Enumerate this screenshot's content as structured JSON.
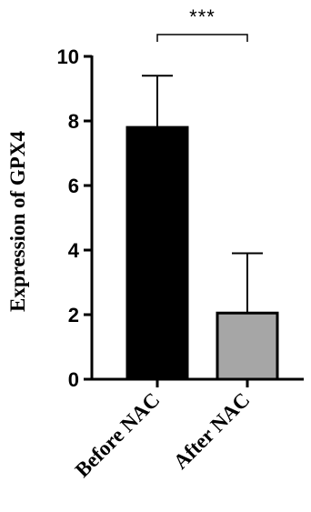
{
  "chart_data": {
    "type": "bar",
    "title": "",
    "xlabel": "",
    "ylabel": "Expression of GPX4",
    "ylim": [
      0,
      10
    ],
    "yticks": [
      0,
      2,
      4,
      6,
      8,
      10
    ],
    "categories": [
      "Before NAC",
      "After NAC"
    ],
    "values": [
      7.8,
      2.05
    ],
    "error_upper": [
      9.4,
      3.9
    ],
    "bar_colors": [
      "#000000",
      "#a6a6a6"
    ],
    "edge_color": "#000000",
    "grid": false,
    "legend": "none",
    "significance": {
      "between": [
        "Before NAC",
        "After NAC"
      ],
      "label": "***"
    }
  }
}
